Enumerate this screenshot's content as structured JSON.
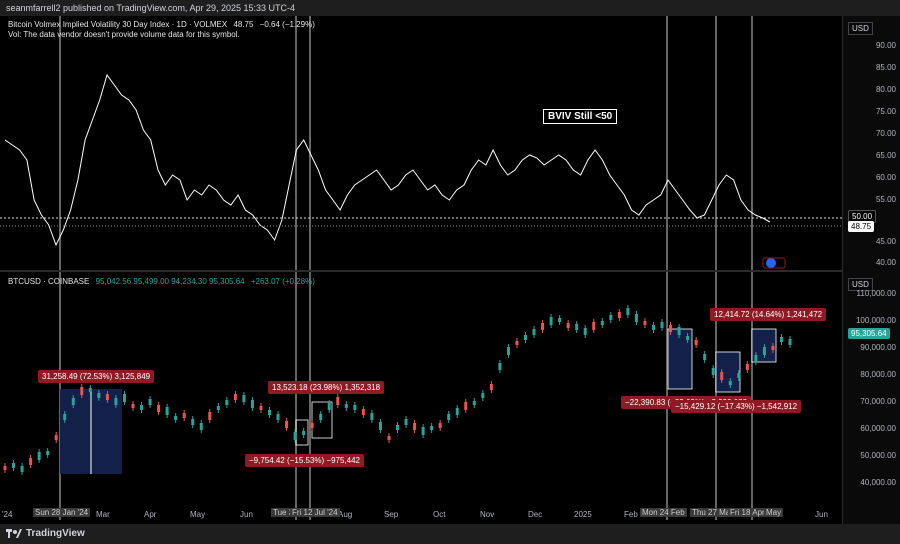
{
  "header": {
    "published": "seanmfarrell2 published on TradingView.com, Apr 29, 2025 15:33 UTC-4"
  },
  "top_pane": {
    "title": "Bitcoin Volmex Implied Volatility 30 Day Index · 1D · VOLMEX",
    "last": "48.75",
    "change": "−0.64 (−1.29%)",
    "note": "Vol: The data vendor doesn't provide volume data for this symbol.",
    "annotation": "BVIV Still <50",
    "currency": "USD",
    "y_ticks": [
      "90.00",
      "85.00",
      "80.00",
      "75.00",
      "70.00",
      "65.00",
      "60.00",
      "55.00",
      "50.00",
      "48.75",
      "45.00",
      "40.00"
    ],
    "line_50_label": "50.00",
    "last_label": "48.75"
  },
  "bottom_pane": {
    "symbol": "BTCUSD · COINBASE",
    "ohlc": "95,042.56  95,499.00  94,234.30  95,305.64",
    "change": "+263.07 (+0.28%)",
    "currency": "USD",
    "y_ticks": [
      "110,000.00",
      "100,000.00",
      "90,000.00",
      "80,000.00",
      "70,000.00",
      "60,000.00",
      "50,000.00",
      "40,000.00"
    ],
    "last_price": "95,305.64",
    "annotations": {
      "a1": "31,258.49 (72.53%) 3,125,849",
      "a2": "13,523.18 (23.98%) 1,352,318",
      "a3": "−9,754.42 (−15.53%) −975,442",
      "a4": "−22,390.83 (−23.09%) −2,239,083",
      "a5": "−15,429.12 (−17.43%) −1,542,912",
      "a6": "12,414.72 (14.64%) 1,241,472"
    }
  },
  "x_axis": {
    "labels": [
      "Mar",
      "Apr",
      "May",
      "Jun",
      "Aug",
      "Sep",
      "Oct",
      "Nov",
      "Dec",
      "2025",
      "Feb",
      "Jun"
    ],
    "left_partial": "'24",
    "highlights": {
      "h1": "Sun 28 Jan '24",
      "h2": "Tue 30",
      "h3": "Fri 12 Jul '24",
      "h4": "Mon 24 Feb",
      "h5": "Thu 27 Mar",
      "h6": "Fri 18 Apr",
      "h7": "May"
    }
  },
  "footer": {
    "brand": "TradingView"
  },
  "colors": {
    "up": "#26a69a",
    "down": "#ef5350",
    "annot": "#8e1b24",
    "box": "#13204a",
    "line": "#ffffff"
  }
}
